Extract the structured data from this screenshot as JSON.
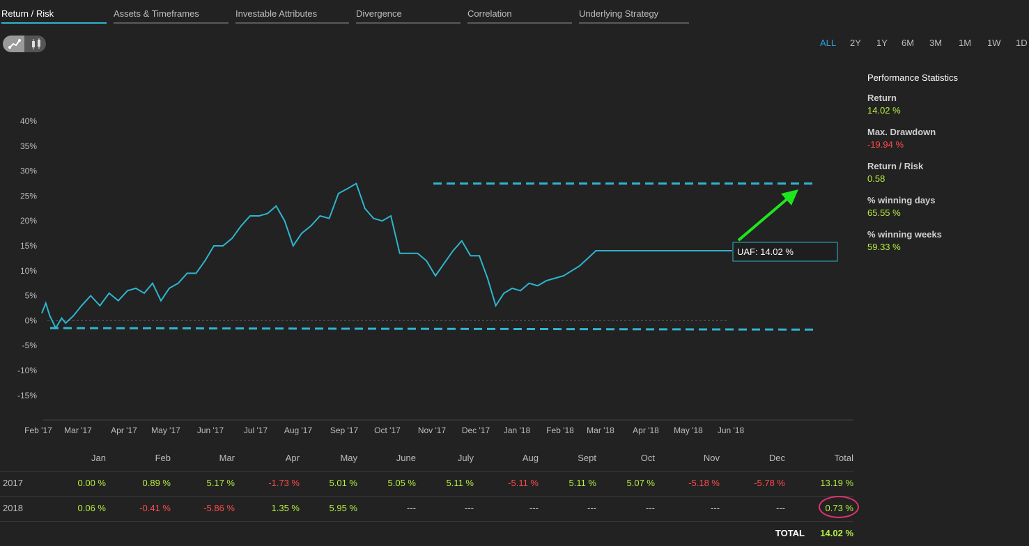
{
  "tabs": [
    {
      "label": "Return / Risk",
      "active": true
    },
    {
      "label": "Assets & Timeframes",
      "active": false
    },
    {
      "label": "Investable Attributes",
      "active": false
    },
    {
      "label": "Divergence",
      "active": false
    },
    {
      "label": "Correlation",
      "active": false
    },
    {
      "label": "Underlying Strategy",
      "active": false
    }
  ],
  "view_toggle": {
    "options": [
      "line-chart-icon",
      "candlestick-icon"
    ],
    "selected": "line-chart-icon"
  },
  "ranges": [
    "ALL",
    "2Y",
    "1Y",
    "6M",
    "3M",
    "1M",
    "1W",
    "1D"
  ],
  "selected_range": "ALL",
  "stats": {
    "title": "Performance Statistics",
    "items": [
      {
        "label": "Return",
        "value": "14.02 %"
      },
      {
        "label": "Max. Drawdown",
        "value": "-19.94 %"
      },
      {
        "label": "Return / Risk",
        "value": "0.58"
      },
      {
        "label": "% winning days",
        "value": "65.55 %"
      },
      {
        "label": "% winning weeks",
        "value": "59.33 %"
      }
    ]
  },
  "colors": {
    "line": "#2fb5cf",
    "accent": "#2f9fe0",
    "positive": "#b7f03f",
    "negative": "#ff4a4a",
    "arrow": "#1ee61e",
    "highlight": "#e0336b"
  },
  "chart_data": {
    "type": "line",
    "ylabel": "",
    "y_ticks": [
      "40%",
      "35%",
      "30%",
      "25%",
      "20%",
      "15%",
      "10%",
      "5%",
      "0%",
      "-5%",
      "-10%",
      "-15%"
    ],
    "ylim": [
      -18,
      42
    ],
    "x_ticks": [
      "Feb '17",
      "Mar '17",
      "Apr '17",
      "May '17",
      "Jun '17",
      "Jul '17",
      "Aug '17",
      "Sep '17",
      "Oct '17",
      "Nov '17",
      "Dec '17",
      "Jan '18",
      "Feb '18",
      "Mar '18",
      "Apr '18",
      "May '18",
      "Jun '18"
    ],
    "series": [
      {
        "name": "UAF",
        "x": [
          0,
          0.1,
          0.2,
          0.35,
          0.5,
          0.6,
          0.8,
          1.0,
          1.2,
          1.4,
          1.6,
          1.8,
          2.0,
          2.2,
          2.4,
          2.6,
          2.8,
          3.0,
          3.2,
          3.4,
          3.6,
          3.8,
          4.0,
          4.2,
          4.4,
          4.6,
          4.8,
          5.0,
          5.2,
          5.4,
          5.6,
          5.8,
          6.0,
          6.2,
          6.4,
          6.6,
          6.8,
          7.0,
          7.2,
          7.4,
          7.6,
          7.8,
          8.0,
          8.2,
          8.4,
          8.6,
          8.8,
          9.0,
          9.2,
          9.4,
          9.6,
          9.8,
          10.0,
          10.2,
          10.4,
          10.6,
          10.8,
          11.0,
          11.2,
          11.4,
          11.6,
          11.8,
          12.0,
          12.2,
          12.4,
          12.6,
          12.8,
          13.0,
          13.2,
          13.4,
          13.6,
          13.8,
          14.0,
          14.2,
          14.4,
          14.6,
          14.8,
          15.0,
          15.2,
          15.4,
          15.6,
          15.8,
          15.95
        ],
        "values": [
          1.5,
          3.5,
          1.0,
          -1.5,
          0.5,
          -0.5,
          1.0,
          3.0,
          5.0,
          3.0,
          5.5,
          4.0,
          6.0,
          6.5,
          5.5,
          7.5,
          4.0,
          6.5,
          7.5,
          9.5,
          9.5,
          12.0,
          15.0,
          15.0,
          16.5,
          19.0,
          21.0,
          21.0,
          21.5,
          23.0,
          20.0,
          15.0,
          17.5,
          19.0,
          21.0,
          20.5,
          25.5,
          26.5,
          27.5,
          22.5,
          20.5,
          20.0,
          21.0,
          13.5,
          13.5,
          13.5,
          12.0,
          9.0,
          11.5,
          14.0,
          16.0,
          13.0,
          13.0,
          8.5,
          3.0,
          5.5,
          6.5,
          6.0,
          7.5,
          7.0,
          8.0,
          8.5,
          9.0,
          10.0,
          11.0,
          12.5,
          14.02,
          14.02,
          14.02,
          14.02,
          14.02,
          14.02,
          14.02,
          14.02,
          14.02,
          14.02,
          14.02,
          14.02,
          14.02,
          14.02,
          14.02,
          14.02,
          14.02
        ]
      }
    ],
    "tooltip": "UAF: 14.02 %"
  },
  "table": {
    "headers": [
      "Jan",
      "Feb",
      "Mar",
      "Apr",
      "May",
      "June",
      "July",
      "Aug",
      "Sept",
      "Oct",
      "Nov",
      "Dec",
      "Total"
    ],
    "rows": [
      {
        "year": "2017",
        "values": [
          "0.00 %",
          "0.89 %",
          "5.17 %",
          "-1.73 %",
          "5.01 %",
          "5.05 %",
          "5.11 %",
          "-5.11 %",
          "5.11 %",
          "5.07 %",
          "-5.18 %",
          "-5.78 %",
          "13.19 %"
        ]
      },
      {
        "year": "2018",
        "values": [
          "0.06 %",
          "-0.41 %",
          "-5.86 %",
          "1.35 %",
          "5.95 %",
          "---",
          "---",
          "---",
          "---",
          "---",
          "---",
          "---",
          "0.73 %"
        ]
      }
    ],
    "total_label": "TOTAL",
    "total_value": "14.02 %"
  }
}
